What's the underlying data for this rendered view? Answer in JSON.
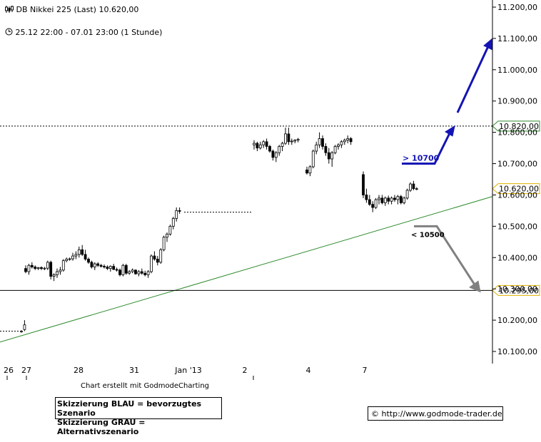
{
  "header": {
    "title": "DB Nikkei 225 (Last) 10.620,00",
    "period": "25.12 22:00 - 07.01 23:00 (1 Stunde)"
  },
  "footer": {
    "credit": "Chart erstellt mit GodmodeCharting",
    "legend_blue": "Skizzierung BLAU = bevorzugtes Szenario",
    "legend_gray": "Skizzierung GRAU = Alternativszenario",
    "url": "© http://www.godmode-trader.de"
  },
  "colors": {
    "candle": "#000000",
    "trendline": "#2e8b2e",
    "blue_scenario": "#1414b4",
    "gray_scenario": "#808080",
    "level_green": "#2e8b2e",
    "level_yellow": "#e0b000"
  },
  "chart_data": {
    "type": "candlestick",
    "title": "DB Nikkei 225 (Last) 10.620,00",
    "ylim": [
      10050,
      11220
    ],
    "y_ticks": [
      "10.100,00",
      "10.200,00",
      "10.300,00",
      "10.400,00",
      "10.500,00",
      "10.600,00",
      "10.700,00",
      "10.800,00",
      "10.900,00",
      "11.000,00",
      "11.100,00",
      "11.200,00"
    ],
    "y_tick_values": [
      10100,
      10200,
      10300,
      10400,
      10500,
      10600,
      10700,
      10800,
      10900,
      11000,
      11100,
      11200
    ],
    "x_ticks": [
      "26",
      "27",
      "28",
      "31",
      "Jan '13",
      "2",
      "4",
      "7"
    ],
    "price_levels": [
      {
        "label": "10.820,00",
        "value": 10820,
        "style": "dotted",
        "color": "green"
      },
      {
        "label": "10.620,00",
        "value": 10620,
        "style": "none",
        "color": "yellow"
      },
      {
        "label": "10.295,00",
        "value": 10295,
        "style": "solid",
        "color": "yellow"
      }
    ],
    "annotations": [
      {
        "text": "> 10700",
        "value": 10700,
        "scenario": "blue"
      },
      {
        "text": "< 10500",
        "value": 10500,
        "scenario": "gray"
      }
    ],
    "trendline": {
      "from": [
        0,
        10130
      ],
      "to": [
        1,
        10595
      ]
    },
    "series": [
      {
        "values": [
          [
            10165,
            10168,
            10160,
            10165
          ],
          [
            10170,
            10200,
            10165,
            10185
          ],
          [
            10365,
            10375,
            10350,
            10355
          ],
          [
            10355,
            10380,
            10345,
            10375
          ],
          [
            10375,
            10385,
            10365,
            10370
          ],
          [
            10370,
            10375,
            10360,
            10365
          ],
          [
            10365,
            10370,
            10360,
            10368
          ],
          [
            10368,
            10372,
            10360,
            10365
          ],
          [
            10365,
            10370,
            10360,
            10366
          ],
          [
            10366,
            10390,
            10360,
            10385
          ],
          [
            10385,
            10390,
            10330,
            10340
          ],
          [
            10340,
            10350,
            10325,
            10345
          ],
          [
            10345,
            10365,
            10335,
            10355
          ],
          [
            10355,
            10370,
            10345,
            10360
          ],
          [
            10360,
            10395,
            10355,
            10390
          ],
          [
            10390,
            10400,
            10385,
            10395
          ],
          [
            10395,
            10400,
            10390,
            10396
          ],
          [
            10396,
            10415,
            10390,
            10405
          ],
          [
            10405,
            10420,
            10395,
            10410
          ],
          [
            10410,
            10435,
            10400,
            10425
          ],
          [
            10425,
            10440,
            10405,
            10410
          ],
          [
            10410,
            10425,
            10390,
            10395
          ],
          [
            10395,
            10400,
            10380,
            10385
          ],
          [
            10385,
            10390,
            10365,
            10370
          ],
          [
            10370,
            10385,
            10360,
            10380
          ],
          [
            10380,
            10385,
            10370,
            10375
          ],
          [
            10375,
            10380,
            10368,
            10372
          ],
          [
            10372,
            10378,
            10365,
            10370
          ],
          [
            10370,
            10375,
            10360,
            10365
          ],
          [
            10365,
            10375,
            10355,
            10372
          ],
          [
            10372,
            10380,
            10360,
            10362
          ],
          [
            10362,
            10368,
            10355,
            10360
          ],
          [
            10360,
            10365,
            10340,
            10345
          ],
          [
            10345,
            10380,
            10340,
            10375
          ],
          [
            10375,
            10380,
            10345,
            10350
          ],
          [
            10350,
            10360,
            10345,
            10355
          ],
          [
            10355,
            10365,
            10350,
            10360
          ],
          [
            10360,
            10362,
            10345,
            10348
          ],
          [
            10348,
            10360,
            10340,
            10355
          ],
          [
            10355,
            10365,
            10345,
            10350
          ],
          [
            10350,
            10358,
            10340,
            10345
          ],
          [
            10345,
            10360,
            10335,
            10355
          ],
          [
            10355,
            10410,
            10350,
            10405
          ],
          [
            10405,
            10420,
            10390,
            10395
          ],
          [
            10395,
            10405,
            10375,
            10385
          ],
          [
            10385,
            10430,
            10380,
            10425
          ],
          [
            10425,
            10470,
            10420,
            10465
          ],
          [
            10465,
            10480,
            10450,
            10475
          ],
          [
            10475,
            10505,
            10470,
            10500
          ],
          [
            10500,
            10530,
            10490,
            10525
          ],
          [
            10525,
            10560,
            10515,
            10550
          ],
          [
            10550,
            10560,
            10540,
            10548
          ],
          [
            10760,
            10775,
            10745,
            10765
          ],
          [
            10765,
            10770,
            10740,
            10750
          ],
          [
            10750,
            10770,
            10745,
            10760
          ],
          [
            10760,
            10775,
            10750,
            10770
          ],
          [
            10770,
            10780,
            10745,
            10755
          ],
          [
            10755,
            10760,
            10735,
            10740
          ],
          [
            10740,
            10745,
            10710,
            10720
          ],
          [
            10720,
            10740,
            10705,
            10735
          ],
          [
            10735,
            10760,
            10725,
            10755
          ],
          [
            10755,
            10770,
            10740,
            10765
          ],
          [
            10765,
            10815,
            10760,
            10795
          ],
          [
            10795,
            10815,
            10760,
            10770
          ],
          [
            10770,
            10780,
            10760,
            10772
          ],
          [
            10772,
            10778,
            10765,
            10775
          ],
          [
            10775,
            10782,
            10768,
            10778
          ],
          [
            10680,
            10690,
            10665,
            10670
          ],
          [
            10670,
            10695,
            10660,
            10690
          ],
          [
            10690,
            10745,
            10685,
            10740
          ],
          [
            10740,
            10770,
            10730,
            10760
          ],
          [
            10760,
            10800,
            10750,
            10780
          ],
          [
            10780,
            10790,
            10745,
            10755
          ],
          [
            10755,
            10765,
            10725,
            10735
          ],
          [
            10735,
            10750,
            10700,
            10715
          ],
          [
            10715,
            10740,
            10690,
            10735
          ],
          [
            10735,
            10760,
            10730,
            10755
          ],
          [
            10755,
            10765,
            10745,
            10760
          ],
          [
            10760,
            10775,
            10750,
            10770
          ],
          [
            10770,
            10780,
            10760,
            10775
          ],
          [
            10775,
            10790,
            10765,
            10780
          ],
          [
            10780,
            10785,
            10760,
            10770
          ],
          [
            10665,
            10675,
            10590,
            10600
          ],
          [
            10600,
            10620,
            10575,
            10585
          ],
          [
            10585,
            10600,
            10565,
            10570
          ],
          [
            10570,
            10580,
            10545,
            10560
          ],
          [
            10560,
            10590,
            10555,
            10585
          ],
          [
            10585,
            10600,
            10570,
            10590
          ],
          [
            10590,
            10600,
            10570,
            10575
          ],
          [
            10575,
            10595,
            10565,
            10590
          ],
          [
            10590,
            10598,
            10570,
            10580
          ],
          [
            10580,
            10595,
            10570,
            10590
          ],
          [
            10590,
            10600,
            10578,
            10585
          ],
          [
            10585,
            10600,
            10570,
            10595
          ],
          [
            10595,
            10600,
            10570,
            10575
          ],
          [
            10575,
            10595,
            10570,
            10590
          ],
          [
            10590,
            10620,
            10585,
            10615
          ],
          [
            10615,
            10640,
            10610,
            10635
          ],
          [
            10635,
            10645,
            10615,
            10620
          ],
          [
            10620,
            10625,
            10615,
            10620
          ]
        ]
      }
    ]
  }
}
